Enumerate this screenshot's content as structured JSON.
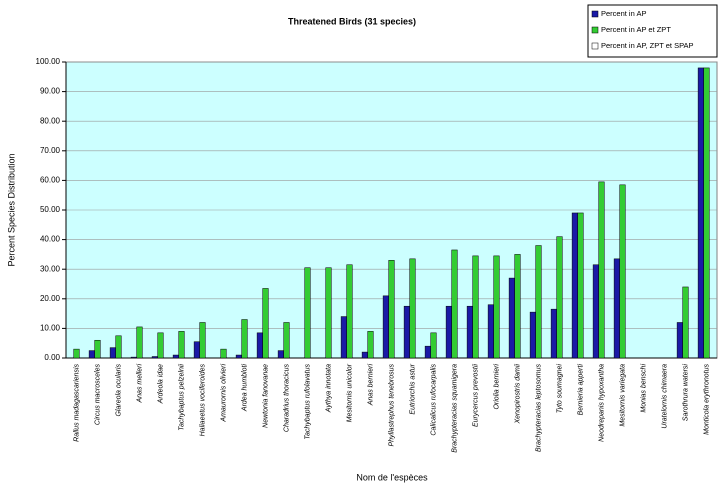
{
  "chart_data": {
    "type": "bar",
    "title": "Threatened Birds (31 species)",
    "xlabel": "Nom de l'espèces",
    "ylabel": "Percent Species Distribution",
    "categories": [
      "Rallus madagascariensis",
      "Circus macrosceles",
      "Glareola ocularis",
      "Anas melleri",
      "Ardeola idae",
      "Tachybaptus pelzelnii",
      "Haliaeetus vociferoides",
      "Amaurornis olivieri",
      "Ardea humbloti",
      "Newtonia fanovanae",
      "Charadrius thoracicus",
      "Tachybaptus rufolavatus",
      "Aythya innotata",
      "Mesitornis unicolor",
      "Anas bernieri",
      "Phyllastrephus tenebrosus",
      "Eutriorchis astur",
      "Calicalicus rufocarpalis",
      "Brachypteracias squamigera",
      "Eurycercus prevostii",
      "Oriolia bernieri",
      "Xenopirostris damii",
      "Brachypteracias leptosomus",
      "Tyto soumagnei",
      "Bernieria apperti",
      "Neodrepanis hypoxantha",
      "Mesitornis variegata",
      "Monias benschi",
      "Uratelornis chimaera",
      "Sarothrura watersi",
      "Monticola erythronotus"
    ],
    "series": [
      {
        "name": "Percent in AP",
        "color": "#1a1aa6",
        "values": [
          0,
          2.5,
          3.5,
          0.3,
          0.5,
          1,
          5.5,
          0,
          1,
          8.5,
          2.5,
          0,
          0,
          14,
          2,
          21,
          17.5,
          4,
          17.5,
          17.5,
          18,
          27,
          15.5,
          16.5,
          49,
          31.5,
          33.5,
          0,
          0,
          12,
          98
        ]
      },
      {
        "name": "Percent in AP et ZPT",
        "color": "#33cc33",
        "values": [
          3,
          6,
          7.5,
          10.5,
          8.5,
          9,
          12,
          3,
          13,
          23.5,
          12,
          30.5,
          30.5,
          31.5,
          9,
          33,
          33.5,
          8.5,
          36.5,
          34.5,
          34.5,
          35,
          38,
          41,
          49,
          59.5,
          58.5,
          0,
          0,
          24,
          98
        ]
      },
      {
        "name": "Percent in AP, ZPT et SPAP",
        "color": "#ffffff",
        "values": [
          0,
          0,
          0,
          0,
          0,
          0,
          0,
          0,
          0,
          0,
          0,
          0,
          0,
          0,
          0,
          0,
          0,
          0,
          0,
          0,
          0,
          0,
          0,
          0,
          0,
          0,
          0,
          0,
          0,
          0,
          0
        ]
      }
    ],
    "ylim": [
      0,
      100
    ],
    "yticks": [
      {
        "value": 0,
        "label": "0.00"
      },
      {
        "value": 10,
        "label": "10.00"
      },
      {
        "value": 20,
        "label": "20.00"
      },
      {
        "value": 30,
        "label": "30.00"
      },
      {
        "value": 40,
        "label": "40.00"
      },
      {
        "value": 50,
        "label": "50.00"
      },
      {
        "value": 60,
        "label": "60.00"
      },
      {
        "value": 70,
        "label": "70.00"
      },
      {
        "value": 80,
        "label": "80.00"
      },
      {
        "value": 90,
        "label": "90.00"
      },
      {
        "value": 100,
        "label": "100.00"
      }
    ],
    "grid": true,
    "legend": "top-right"
  }
}
